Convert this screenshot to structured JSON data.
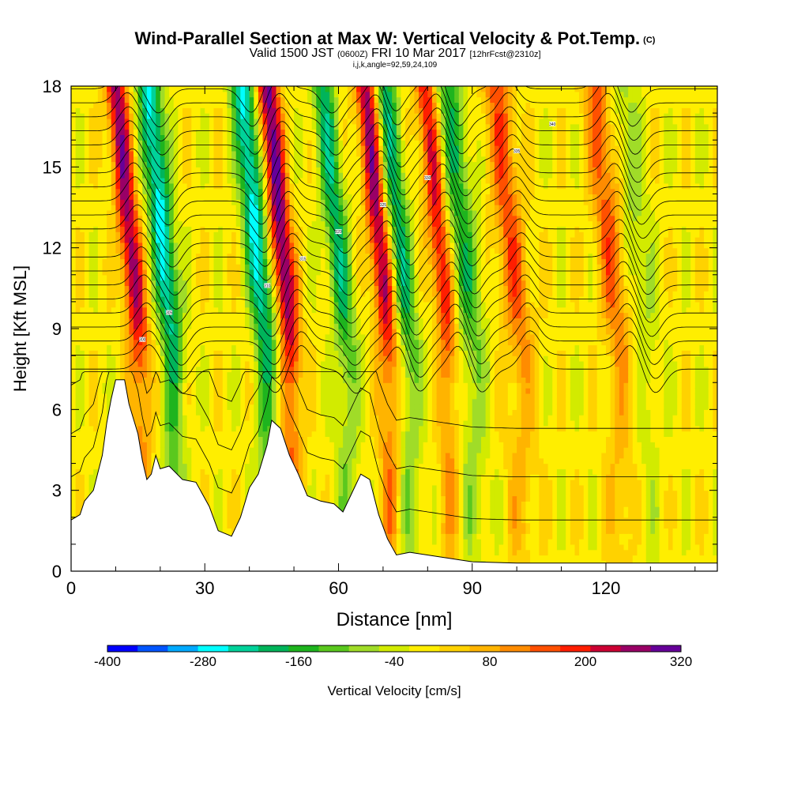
{
  "title": {
    "main": "Wind-Parallel Section at Max W: Vertical Velocity & Pot.Temp.",
    "copyright": "(C)",
    "valid_prefix": "Valid 1500 JST",
    "valid_utc": "(0600Z)",
    "valid_date": "FRI 10 Mar 2017",
    "forecast": "[12hrFcst@2310z]",
    "indices": "i,j,k,angle=92,59,24,109"
  },
  "chart_data": {
    "type": "heatmap",
    "xlabel": "Distance [nm]",
    "ylabel": "Height [Kft MSL]",
    "xlim": [
      0,
      145
    ],
    "ylim": [
      0,
      18
    ],
    "x_ticks": [
      "0",
      "30",
      "60",
      "90",
      "120"
    ],
    "y_ticks": [
      "0",
      "3",
      "6",
      "9",
      "12",
      "15",
      "18"
    ],
    "grid": false,
    "colorbar": {
      "label": "Vertical Velocity [cm/s]",
      "tick_labels": [
        "-400",
        "-280",
        "-160",
        "-40",
        "80",
        "200",
        "320"
      ],
      "levels": [
        -400,
        -360,
        -320,
        -280,
        -240,
        -200,
        -160,
        -120,
        -80,
        -40,
        0,
        40,
        80,
        120,
        160,
        200,
        240,
        280,
        320
      ],
      "colors": [
        "#0000ff",
        "#0055ff",
        "#00aaff",
        "#00ffff",
        "#00d29a",
        "#00b45a",
        "#1eb41e",
        "#5ac81e",
        "#a0dc28",
        "#d2eb00",
        "#ffee00",
        "#ffd200",
        "#ffb400",
        "#ff8c00",
        "#ff5000",
        "#ff1e00",
        "#cc0033",
        "#990066",
        "#660099"
      ]
    },
    "terrain_kft": [
      [
        0,
        1.9
      ],
      [
        2,
        2.1
      ],
      [
        3,
        2.6
      ],
      [
        5,
        3.0
      ],
      [
        7,
        4.3
      ],
      [
        8,
        5.5
      ],
      [
        9,
        6.4
      ],
      [
        10,
        7.1
      ],
      [
        12,
        7.1
      ],
      [
        13,
        6.2
      ],
      [
        15,
        5.1
      ],
      [
        16,
        4.1
      ],
      [
        17,
        3.4
      ],
      [
        18,
        3.6
      ],
      [
        19,
        4.3
      ],
      [
        20,
        3.8
      ],
      [
        22,
        3.9
      ],
      [
        25,
        3.4
      ],
      [
        28,
        3.3
      ],
      [
        31,
        2.4
      ],
      [
        33,
        1.5
      ],
      [
        36,
        1.3
      ],
      [
        38,
        2.0
      ],
      [
        40,
        3.1
      ],
      [
        42,
        3.6
      ],
      [
        44,
        4.7
      ],
      [
        45,
        5.6
      ],
      [
        47,
        5.3
      ],
      [
        49,
        4.3
      ],
      [
        51,
        3.6
      ],
      [
        53,
        2.8
      ],
      [
        56,
        2.6
      ],
      [
        59,
        2.5
      ],
      [
        61,
        2.2
      ],
      [
        63,
        2.9
      ],
      [
        65,
        3.6
      ],
      [
        67,
        3.4
      ],
      [
        69,
        2.1
      ],
      [
        71,
        1.2
      ],
      [
        73,
        0.6
      ],
      [
        76,
        0.7
      ],
      [
        90,
        0.35
      ],
      [
        100,
        0.3
      ],
      [
        145,
        0.3
      ]
    ],
    "theta_contour_labels": [
      "300",
      "305",
      "310",
      "315",
      "320",
      "325",
      "330",
      "335",
      "340"
    ],
    "contour_levels_K": [
      300,
      302,
      304,
      306,
      308,
      310,
      312,
      314,
      316,
      318,
      320,
      322,
      324,
      326,
      328,
      330,
      332,
      334,
      336,
      338,
      340
    ],
    "wave_updrafts": [
      {
        "x_nm": 15.5,
        "w_max_cms": 280
      },
      {
        "x_nm": 49.5,
        "w_max_cms": 320
      },
      {
        "x_nm": 71.5,
        "w_max_cms": 280
      },
      {
        "x_nm": 85.0,
        "w_max_cms": 240
      },
      {
        "x_nm": 101.0,
        "w_max_cms": 160
      },
      {
        "x_nm": 123.5,
        "w_max_cms": 160
      }
    ],
    "wave_downdrafts": [
      {
        "x_nm": 23.0,
        "w_min_cms": -280
      },
      {
        "x_nm": 44.0,
        "w_min_cms": -280
      },
      {
        "x_nm": 62.0,
        "w_min_cms": -200
      },
      {
        "x_nm": 76.0,
        "w_min_cms": -200
      },
      {
        "x_nm": 90.0,
        "w_min_cms": -160
      },
      {
        "x_nm": 129.0,
        "w_min_cms": -80
      }
    ]
  }
}
